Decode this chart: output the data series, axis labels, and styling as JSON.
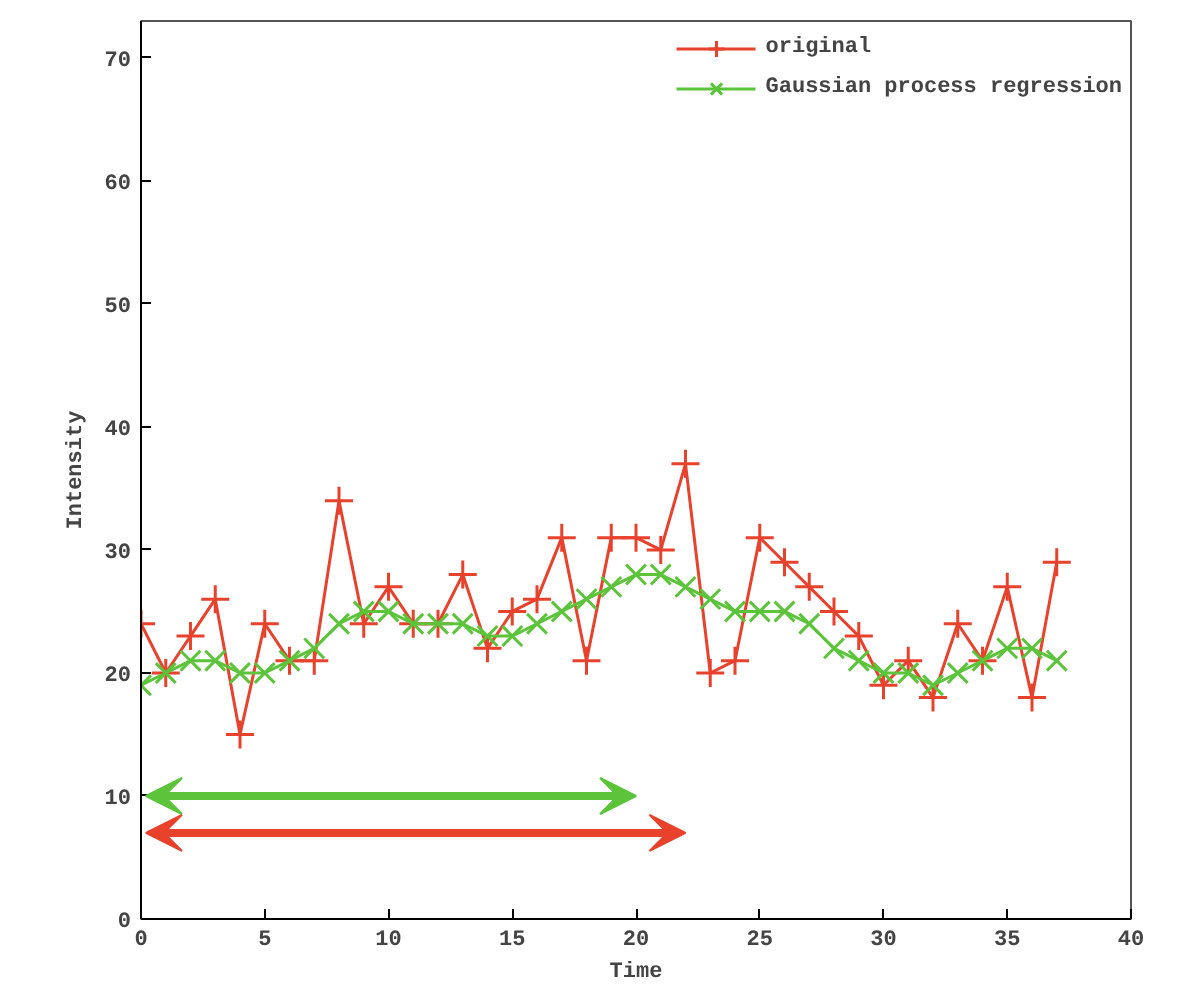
{
  "chart_data": {
    "type": "line",
    "xlabel": "Time",
    "ylabel": "Intensity",
    "x": [
      0,
      1,
      2,
      3,
      4,
      5,
      6,
      7,
      8,
      9,
      10,
      11,
      12,
      13,
      14,
      15,
      16,
      17,
      18,
      19,
      20,
      21,
      22,
      23,
      24,
      25,
      26,
      27,
      28,
      29,
      30,
      31,
      32,
      33,
      34,
      35,
      36,
      37
    ],
    "series": [
      {
        "name": "original",
        "color": "#e8412c",
        "marker": "cross",
        "values": [
          24,
          20,
          23,
          26,
          15,
          24,
          21,
          21,
          34,
          24,
          27,
          24,
          24,
          28,
          22,
          25,
          26,
          31,
          21,
          31,
          31,
          30,
          37,
          20,
          21,
          31,
          29,
          27,
          25,
          23,
          19,
          21,
          18,
          24,
          21,
          27,
          18,
          29
        ]
      },
      {
        "name": "Gaussian process regression",
        "color": "#5cc43a",
        "marker": "x",
        "values": [
          19,
          20,
          21,
          21,
          20,
          20,
          21,
          22,
          24,
          25,
          25,
          24,
          24,
          24,
          23,
          23,
          24,
          25,
          26,
          27,
          28,
          28,
          27,
          26,
          25,
          25,
          25,
          24,
          22,
          21,
          20,
          20,
          19,
          20,
          21,
          22,
          22,
          21
        ]
      }
    ],
    "xlim": [
      0,
      40
    ],
    "xticks": [
      0,
      5,
      10,
      15,
      20,
      25,
      30,
      35,
      40
    ],
    "ylim": [
      0,
      73
    ],
    "yticks": [
      0,
      10,
      20,
      30,
      40,
      50,
      60,
      70
    ],
    "grid": false,
    "legend": "top right",
    "line_style": "solid"
  }
}
